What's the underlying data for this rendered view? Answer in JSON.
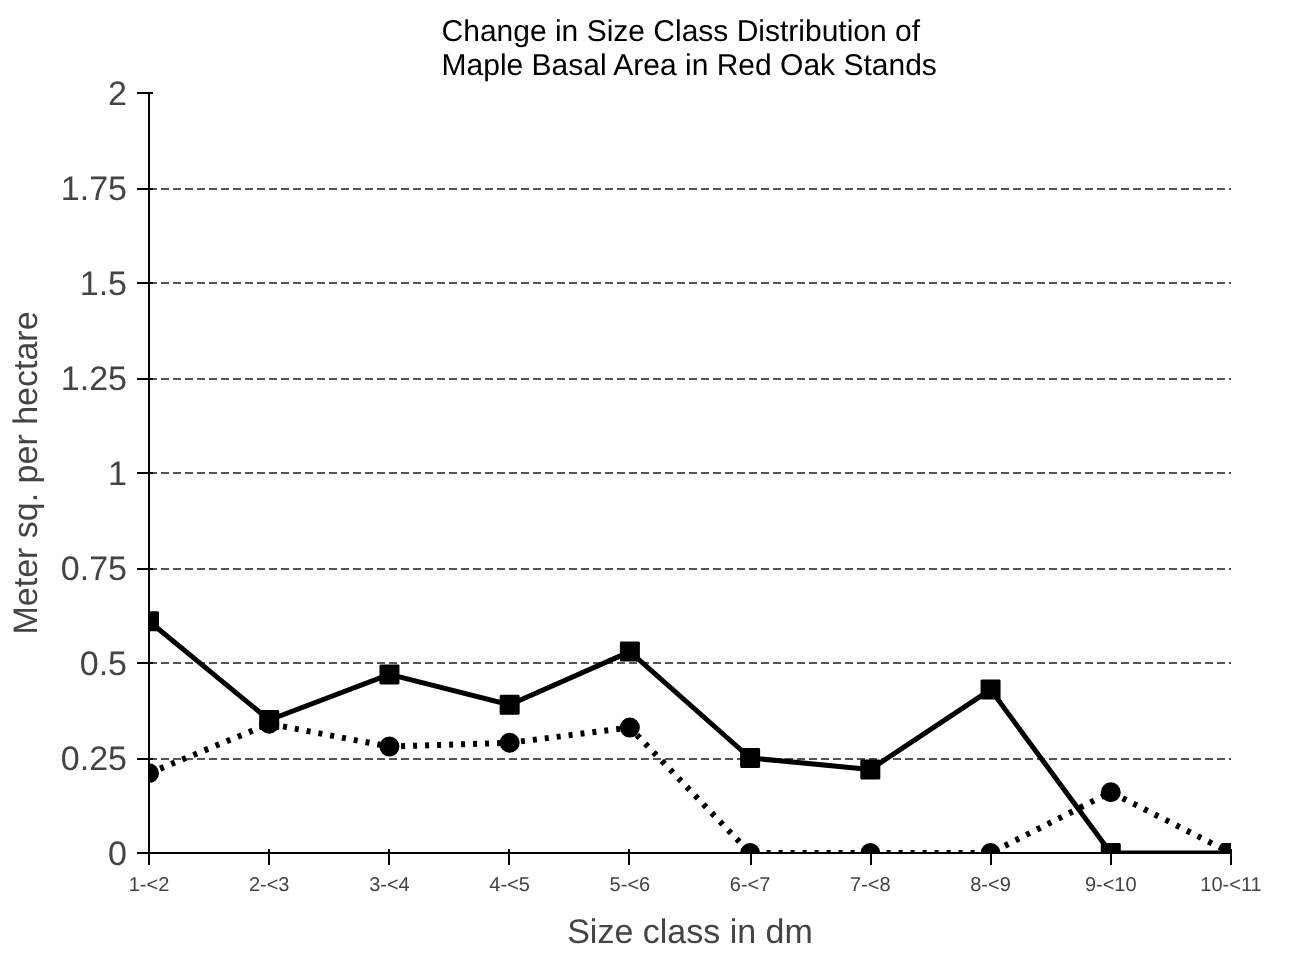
{
  "chart_data": {
    "type": "line",
    "title": "Change in Size Class Distribution of\nMaple Basal Area in Red Oak Stands",
    "xlabel": "Size class in dm",
    "ylabel": "Meter sq. per hectare",
    "categories": [
      "1-<2",
      "2-<3",
      "3-<4",
      "4-<5",
      "5-<6",
      "6-<7",
      "7-<8",
      "8-<9",
      "9-<10",
      "10-<11"
    ],
    "series": [
      {
        "color": "#000000",
        "marker": "square",
        "line_style": "solid",
        "values": [
          0.61,
          0.35,
          0.47,
          0.39,
          0.53,
          0.25,
          0.22,
          0.43,
          0,
          0
        ]
      },
      {
        "color": "#000000",
        "marker": "circle",
        "line_style": "dotted",
        "values": [
          0.21,
          0.34,
          0.28,
          0.29,
          0.33,
          0,
          0,
          0,
          0.16,
          0
        ]
      }
    ],
    "ylim": [
      0,
      2
    ],
    "yticks": [
      0,
      0.25,
      0.5,
      0.75,
      1,
      1.25,
      1.5,
      1.75,
      2
    ],
    "grid": "y"
  }
}
